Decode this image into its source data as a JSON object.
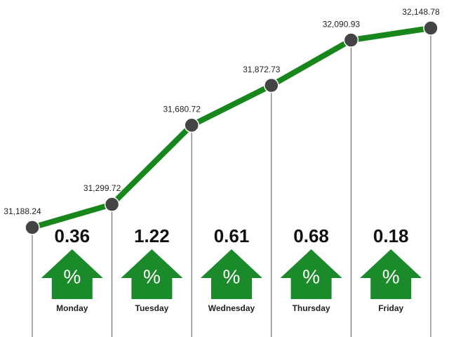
{
  "chart_data": {
    "type": "line",
    "values": [
      31188.24,
      31299.72,
      31680.72,
      31872.73,
      32090.93,
      32148.78
    ],
    "value_labels": [
      "31,188.24",
      "31,299.72",
      "31,680.72",
      "31,872.73",
      "32,090.93",
      "32,148.78"
    ],
    "color": "#17871b",
    "changes": {
      "categories": [
        "Monday",
        "Tuesday",
        "Wednesday",
        "Thursday",
        "Friday"
      ],
      "values": [
        0.36,
        1.22,
        0.61,
        0.68,
        0.18
      ],
      "symbol": "%",
      "color": "#1a8a2a"
    }
  }
}
